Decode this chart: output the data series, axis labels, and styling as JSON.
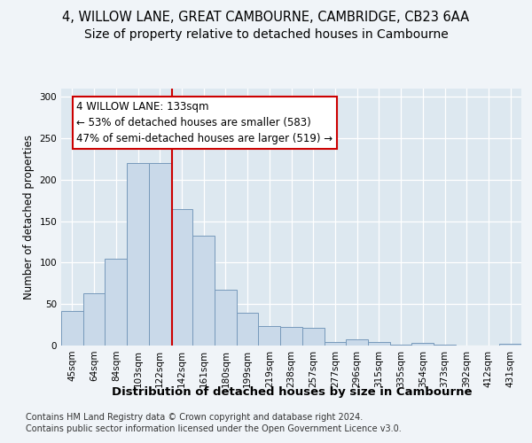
{
  "title1": "4, WILLOW LANE, GREAT CAMBOURNE, CAMBRIDGE, CB23 6AA",
  "title2": "Size of property relative to detached houses in Cambourne",
  "xlabel": "Distribution of detached houses by size in Cambourne",
  "ylabel": "Number of detached properties",
  "footer1": "Contains HM Land Registry data © Crown copyright and database right 2024.",
  "footer2": "Contains public sector information licensed under the Open Government Licence v3.0.",
  "categories": [
    "45sqm",
    "64sqm",
    "84sqm",
    "103sqm",
    "122sqm",
    "142sqm",
    "161sqm",
    "180sqm",
    "199sqm",
    "219sqm",
    "238sqm",
    "257sqm",
    "277sqm",
    "296sqm",
    "315sqm",
    "335sqm",
    "354sqm",
    "373sqm",
    "392sqm",
    "412sqm",
    "431sqm"
  ],
  "values": [
    42,
    63,
    105,
    220,
    220,
    165,
    133,
    67,
    40,
    23,
    22,
    21,
    4,
    7,
    4,
    1,
    3,
    1,
    0,
    0,
    2
  ],
  "bar_color": "#c9d9e9",
  "bar_edge_color": "#7799bb",
  "background_color": "#dde8f0",
  "grid_color": "#ffffff",
  "fig_bg_color": "#f0f4f8",
  "annotation_box_color": "#ffffff",
  "annotation_box_edge": "#cc0000",
  "annotation_text": "4 WILLOW LANE: 133sqm",
  "annotation_line1": "← 53% of detached houses are smaller (583)",
  "annotation_line2": "47% of semi-detached houses are larger (519) →",
  "vline_color": "#cc0000",
  "ylim": [
    0,
    310
  ],
  "yticks": [
    0,
    50,
    100,
    150,
    200,
    250,
    300
  ],
  "title1_fontsize": 10.5,
  "title2_fontsize": 10,
  "xlabel_fontsize": 9.5,
  "ylabel_fontsize": 8.5,
  "tick_fontsize": 7.5,
  "annotation_fontsize": 8.5,
  "footer_fontsize": 7
}
